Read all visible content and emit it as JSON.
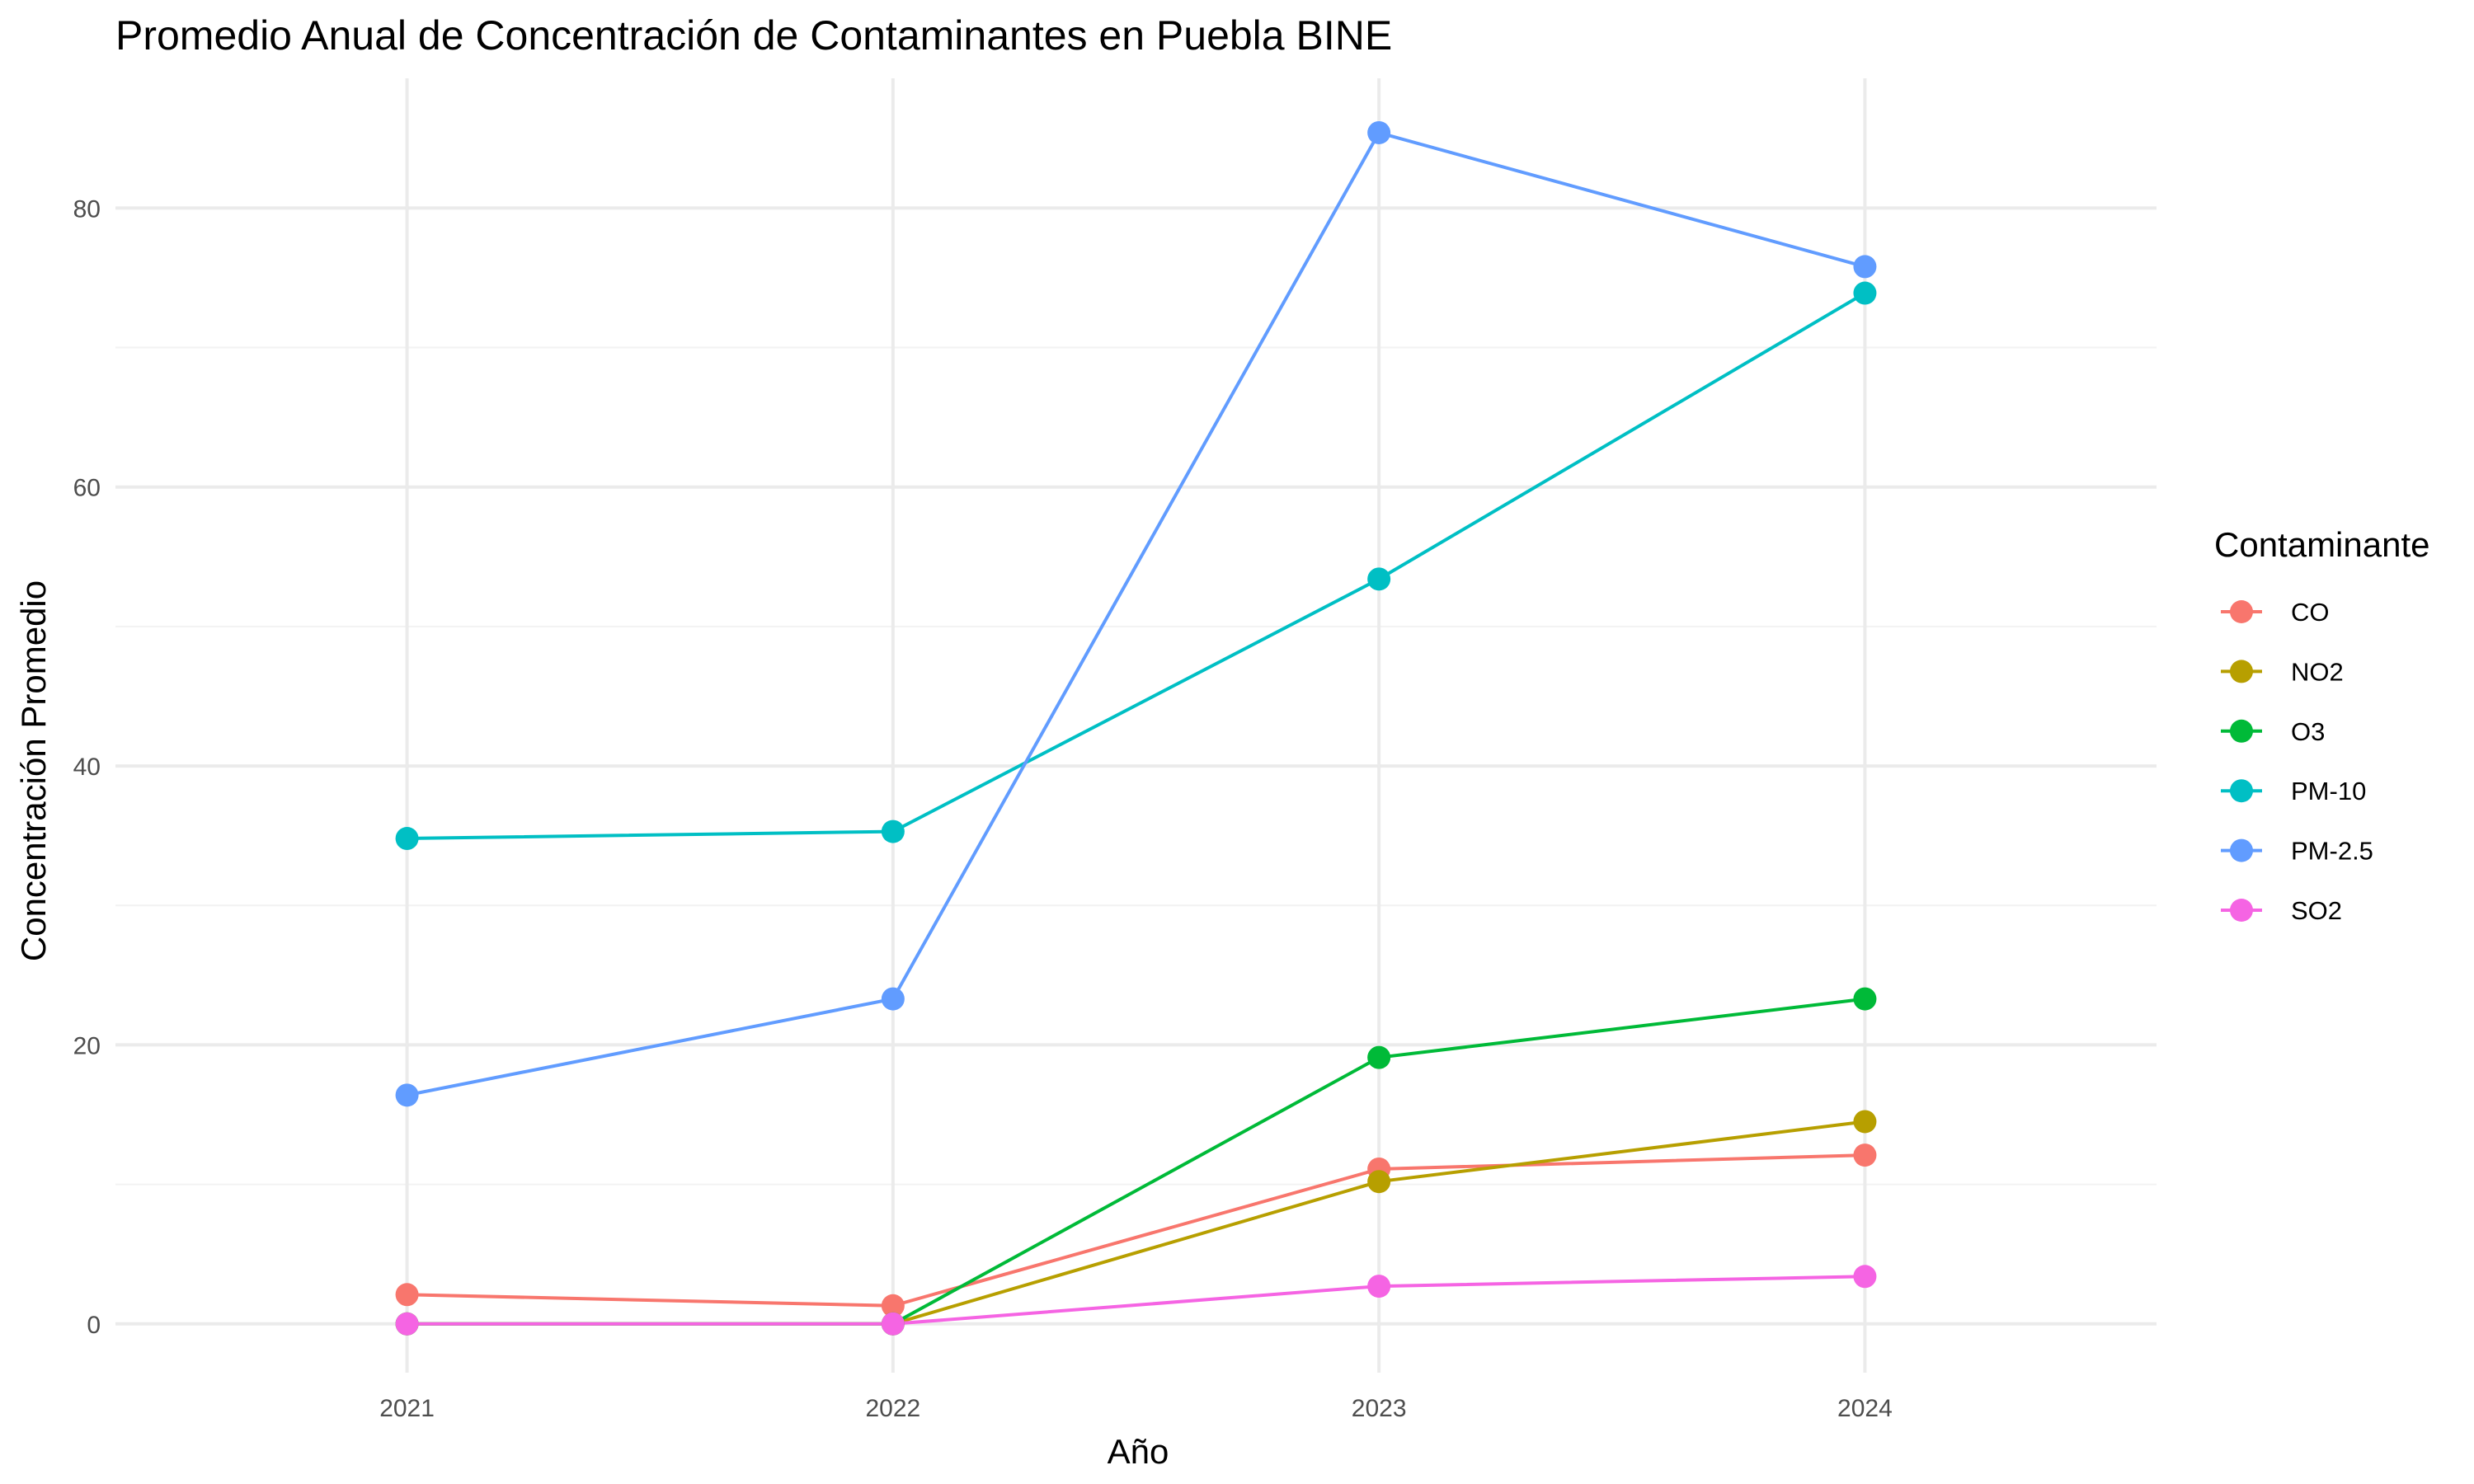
{
  "chart_data": {
    "type": "line",
    "title": "Promedio Anual de Concentración de Contaminantes en Puebla BINE",
    "xlabel": "Año",
    "ylabel": "Concentración Promedio",
    "x": [
      2021,
      2022,
      2023,
      2024
    ],
    "x_tick_labels": [
      "2021",
      "2022",
      "2023",
      "2024"
    ],
    "xlim": [
      2020.4,
      2024.6
    ],
    "ylim": [
      -3.5,
      89.3
    ],
    "y_ticks": [
      0,
      20,
      40,
      60,
      80
    ],
    "y_tick_labels": [
      "0",
      "20",
      "40",
      "60",
      "80"
    ],
    "grid": true,
    "legend": {
      "title": "Contaminante",
      "position": "right"
    },
    "series": [
      {
        "name": "CO",
        "color": "#F8766D",
        "values": [
          2.1,
          1.3,
          11.1,
          12.1
        ]
      },
      {
        "name": "NO2",
        "color": "#B79F00",
        "values": [
          0,
          0,
          10.2,
          14.5
        ]
      },
      {
        "name": "O3",
        "color": "#00BA38",
        "values": [
          0,
          0,
          19.1,
          23.3
        ]
      },
      {
        "name": "PM-10",
        "color": "#00BFC4",
        "values": [
          34.8,
          35.3,
          53.4,
          73.9
        ]
      },
      {
        "name": "PM-2.5",
        "color": "#619CFF",
        "values": [
          16.4,
          23.3,
          85.4,
          75.8
        ]
      },
      {
        "name": "SO2",
        "color": "#F564E3",
        "values": [
          0,
          0,
          2.7,
          3.4
        ]
      }
    ]
  }
}
